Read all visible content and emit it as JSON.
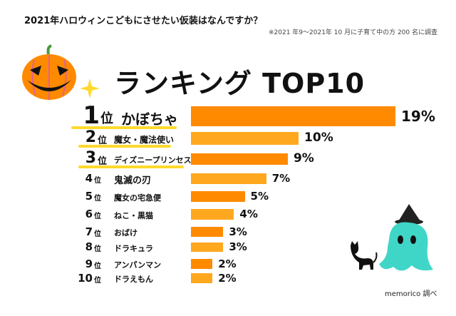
{
  "title": "2021年ハロウィンこどもにさせたい仮装はなんですか？",
  "note": "※2021 年9〜2021年 10 月に子育て中の方 200 名に調査",
  "heading": "ランキング TOP10",
  "credit": "memorico 調べ",
  "colors": {
    "dark": "#ff8a00",
    "light": "#ffa81f",
    "underline": "#ffd92e"
  },
  "chart_data": {
    "type": "bar",
    "orientation": "horizontal",
    "categories": [
      "かぼちゃ",
      "魔女・魔法使い",
      "ディズニープリンセス",
      "鬼滅の刃",
      "魔女の宅急便",
      "ねこ・黒猫",
      "おばけ",
      "ドラキュラ",
      "アンパンマン",
      "ドラえもん"
    ],
    "ranks": [
      "1",
      "2",
      "3",
      "4",
      "5",
      "6",
      "7",
      "8",
      "9",
      "10"
    ],
    "rank_suffix": "位",
    "values": [
      19,
      10,
      9,
      7,
      5,
      4,
      3,
      3,
      2,
      2
    ],
    "labels": [
      "19%",
      "10%",
      "9%",
      "7%",
      "5%",
      "4%",
      "3%",
      "3%",
      "2%",
      "2%"
    ],
    "unit": "%",
    "grid": false
  }
}
